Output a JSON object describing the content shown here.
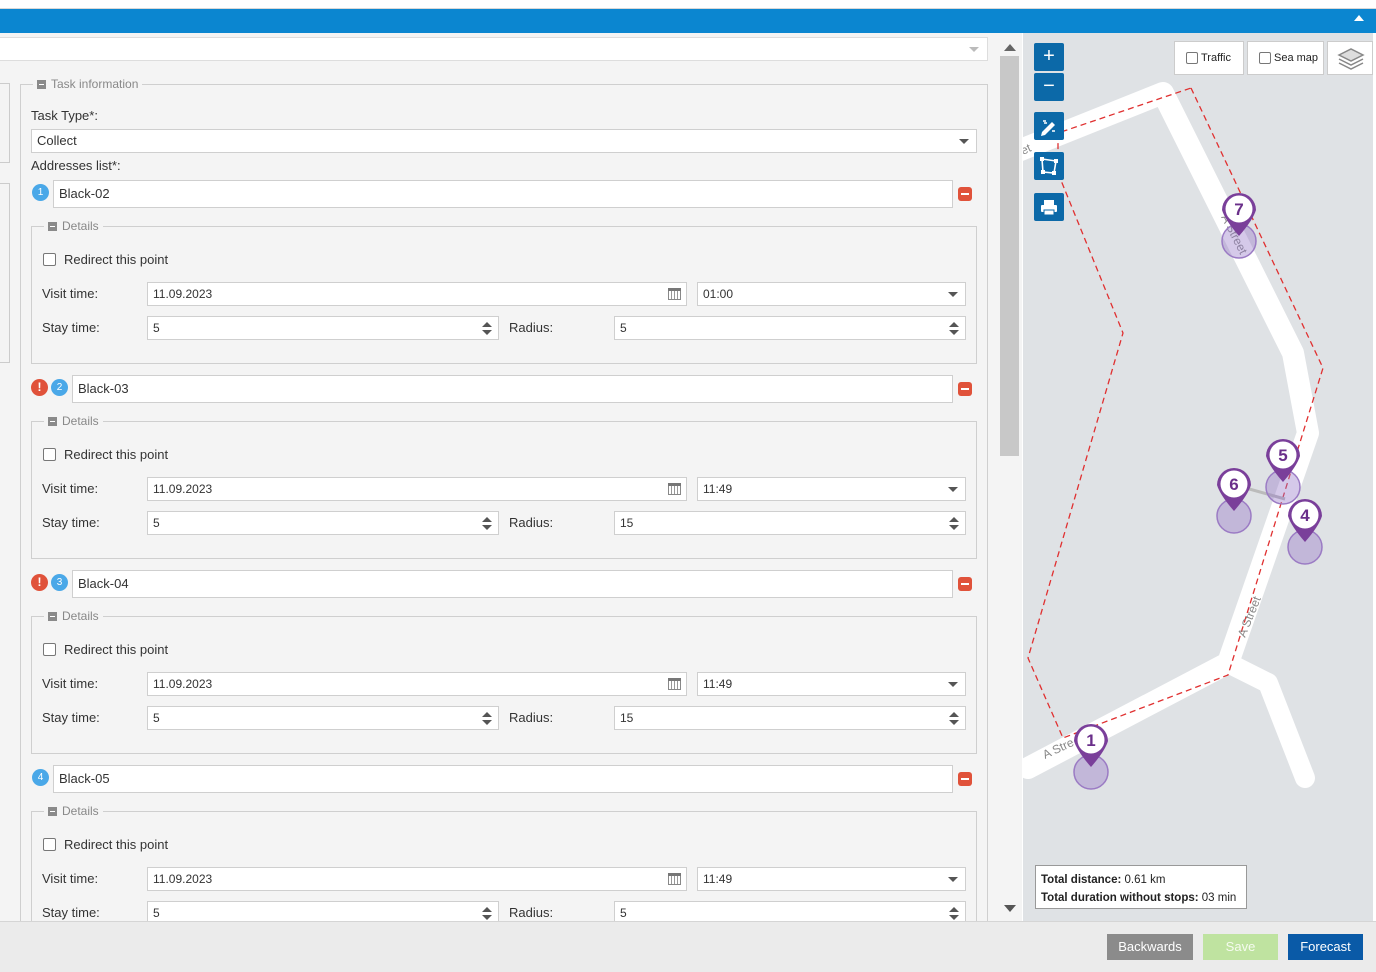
{
  "task_information": {
    "legend": "Task information",
    "task_type_label": "Task Type*:",
    "task_type_value": "Collect",
    "addresses_label": "Addresses list*:",
    "details_legend": "Details",
    "redirect_label": "Redirect this point",
    "visit_time_label": "Visit time:",
    "stay_time_label": "Stay time:",
    "radius_label": "Radius:",
    "addresses": [
      {
        "number": "1",
        "warning": false,
        "name": "Black-02",
        "visit_date": "11.09.2023",
        "visit_time": "01:00",
        "stay_time": "5",
        "radius": "5"
      },
      {
        "number": "2",
        "warning": true,
        "name": "Black-03",
        "visit_date": "11.09.2023",
        "visit_time": "11:49",
        "stay_time": "5",
        "radius": "15"
      },
      {
        "number": "3",
        "warning": true,
        "name": "Black-04",
        "visit_date": "11.09.2023",
        "visit_time": "11:49",
        "stay_time": "5",
        "radius": "15"
      },
      {
        "number": "4",
        "warning": false,
        "name": "Black-05",
        "visit_date": "11.09.2023",
        "visit_time": "11:49",
        "stay_time": "5",
        "radius": "5"
      }
    ]
  },
  "map": {
    "zoom_in": "+",
    "zoom_out": "−",
    "traffic_label": "Traffic",
    "sea_map_label": "Sea map",
    "street_labels": [
      "A Street",
      "A Street",
      "A Stre",
      "et"
    ],
    "markers": [
      "7",
      "5",
      "6",
      "4",
      "1"
    ],
    "total_distance_label": "Total distance:",
    "total_distance_value": "0.61 km",
    "total_duration_label": "Total duration without stops:",
    "total_duration_value": "03 min"
  },
  "footer": {
    "backwards": "Backwards",
    "save": "Save",
    "forecast": "Forecast"
  }
}
